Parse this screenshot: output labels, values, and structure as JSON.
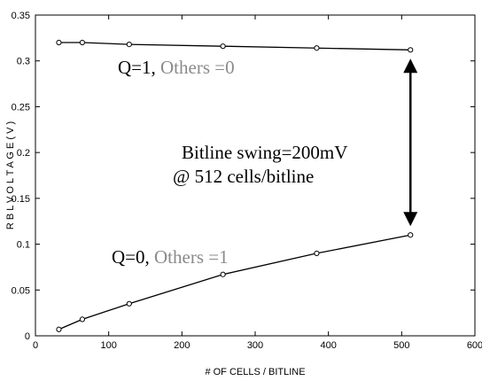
{
  "chart_data": {
    "type": "line",
    "title": "",
    "xlabel": "# OF CELLS / BITLINE",
    "ylabel": "R B L   V O L T A G E   ( V )",
    "xlim": [
      0,
      600
    ],
    "ylim": [
      0,
      0.35
    ],
    "x_ticks": [
      "0",
      "100",
      "200",
      "300",
      "400",
      "500",
      "600"
    ],
    "y_ticks": [
      "0",
      "0.05",
      "0.1",
      "0.15",
      "0.2",
      "0.25",
      "0.3",
      "0.35"
    ],
    "grid": false,
    "x": [
      32,
      64,
      128,
      256,
      384,
      512
    ],
    "series": [
      {
        "values": [
          0.32,
          0.32,
          0.318,
          0.316,
          0.314,
          0.312
        ]
      },
      {
        "values": [
          0.007,
          0.018,
          0.035,
          0.067,
          0.09,
          0.11
        ]
      }
    ],
    "annotations": {
      "q1_main": "Q=1,",
      "q1_gray": " Others =0",
      "q0_main": "Q=0,",
      "q0_gray": " Others =1",
      "swing_line1": "Bitline swing=200mV",
      "swing_line2": "@ 512 cells/bitline"
    },
    "colors": {
      "line": "#000000",
      "gray_text": "#8a8a8a"
    }
  }
}
